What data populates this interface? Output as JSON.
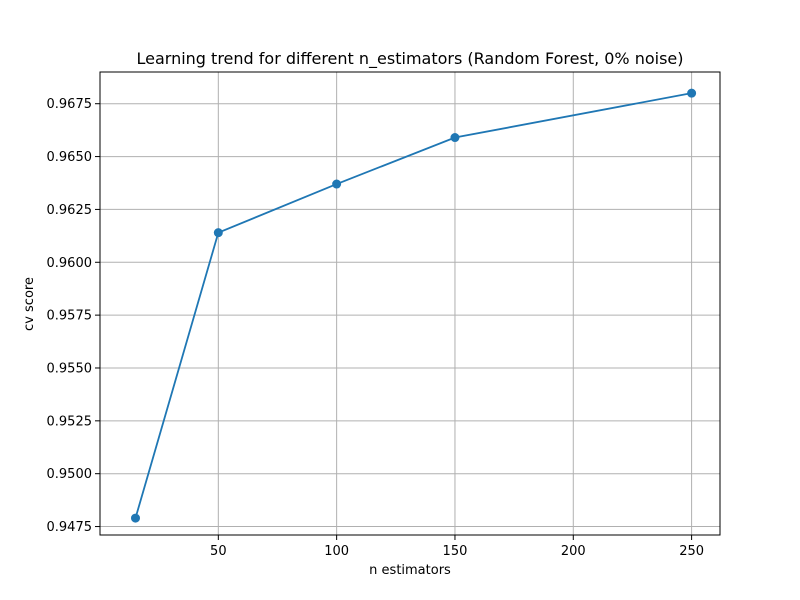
{
  "chart_data": {
    "type": "line",
    "title": "Learning trend for different n_estimators (Random Forest, 0% noise)",
    "xlabel": "n estimators",
    "ylabel": "cv score",
    "xlim": [
      0,
      262
    ],
    "ylim": [
      0.9471,
      0.969
    ],
    "xticks": [
      50,
      100,
      150,
      200,
      250
    ],
    "yticks": [
      0.9475,
      0.95,
      0.9525,
      0.955,
      0.9575,
      0.96,
      0.9625,
      0.965,
      0.9675
    ],
    "xtick_labels": [
      "50",
      "100",
      "150",
      "200",
      "250"
    ],
    "ytick_labels": [
      "0.9475",
      "0.9500",
      "0.9525",
      "0.9550",
      "0.9575",
      "0.9600",
      "0.9625",
      "0.9650",
      "0.9675"
    ],
    "grid": true,
    "series": [
      {
        "color": "#1f77b4",
        "marker": "circle",
        "x": [
          15,
          50,
          100,
          150,
          250
        ],
        "y": [
          0.9479,
          0.9614,
          0.9637,
          0.9659,
          0.968
        ]
      }
    ]
  }
}
